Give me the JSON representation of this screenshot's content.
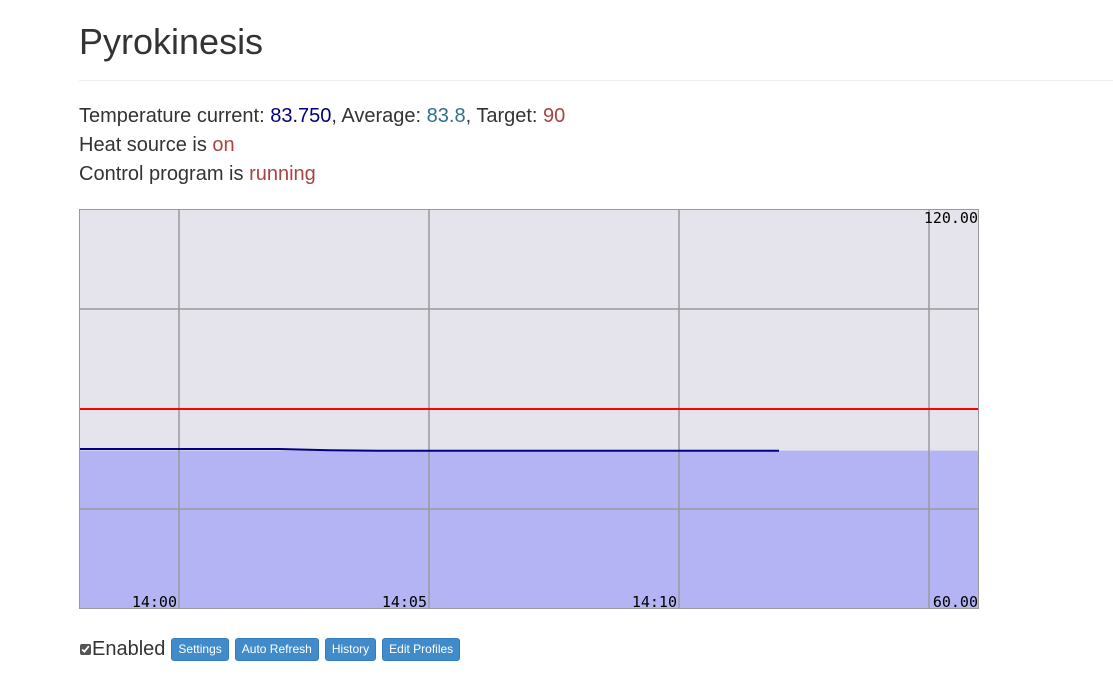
{
  "page": {
    "title": "Pyrokinesis"
  },
  "status": {
    "temp_label": "Temperature current: ",
    "temp_current": "83.750",
    "average_label": ", Average: ",
    "average": "83.8",
    "target_label": ", Target: ",
    "target": "90",
    "heat_label": "Heat source is ",
    "heat_state": "on",
    "program_label": "Control program is ",
    "program_state": "running"
  },
  "chart_data": {
    "type": "area",
    "title": "",
    "xlabel": "",
    "ylabel": "",
    "ylim": [
      60,
      120
    ],
    "xlim": [
      "13:58",
      "14:16"
    ],
    "x_ticks": [
      "14:00",
      "14:05",
      "14:10"
    ],
    "y_tick_labels": {
      "top": "120.00",
      "bottom": "60.00"
    },
    "grid": true,
    "series": [
      {
        "name": "",
        "role": "temperature",
        "color": "#000080",
        "x": [
          "13:58",
          "14:02",
          "14:03",
          "14:04",
          "14:05",
          "14:08",
          "14:11",
          "14:12"
        ],
        "y": [
          84.0,
          84.0,
          83.8,
          83.75,
          83.75,
          83.75,
          83.75,
          83.75
        ]
      },
      {
        "name": "",
        "role": "target",
        "color": "#ff0000",
        "x": [
          "13:58",
          "14:16"
        ],
        "y": [
          90,
          90
        ]
      }
    ],
    "fill_level": 83.75,
    "fill_color": "#b4b4f4",
    "background_color": "#e5e3eb"
  },
  "controls": {
    "enabled_label": "Enabled",
    "enabled_checked": true,
    "buttons": {
      "settings": "Settings",
      "auto_refresh": "Auto Refresh",
      "history": "History",
      "edit_profiles": "Edit Profiles"
    }
  }
}
